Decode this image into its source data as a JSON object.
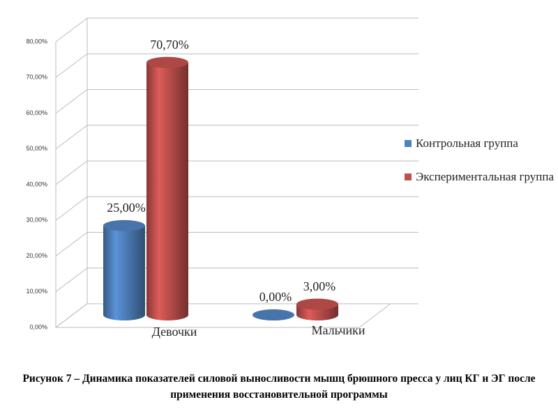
{
  "chart_data": {
    "type": "bar",
    "caption": "Рисунок 7 – Динамика показателей силовой выносливости мышц брюшного пресса у лиц КГ и ЭГ после применения восстановительной программы",
    "categories": [
      "Девочки",
      "Мальчики"
    ],
    "series": [
      {
        "name": "Контрольная группа",
        "color": "#4f81bd",
        "values": [
          25,
          0
        ],
        "value_labels": [
          "25,00%",
          "0,00%"
        ]
      },
      {
        "name": "Экспериментальная группа",
        "color": "#c0504d",
        "values": [
          70.7,
          3
        ],
        "value_labels": [
          "70,70%",
          "3,00%"
        ]
      }
    ],
    "ylim": [
      0,
      80
    ],
    "yticks": [
      {
        "value": 0,
        "label": "0,00%"
      },
      {
        "value": 10,
        "label": "10,00%"
      },
      {
        "value": 20,
        "label": "20,00%"
      },
      {
        "value": 30,
        "label": "30,00%"
      },
      {
        "value": 40,
        "label": "40,00%"
      },
      {
        "value": 50,
        "label": "50,00%"
      },
      {
        "value": 60,
        "label": "60,00%"
      },
      {
        "value": 70,
        "label": "70,00%"
      },
      {
        "value": 80,
        "label": "80,00%"
      }
    ],
    "grid": true,
    "legend": "right"
  }
}
